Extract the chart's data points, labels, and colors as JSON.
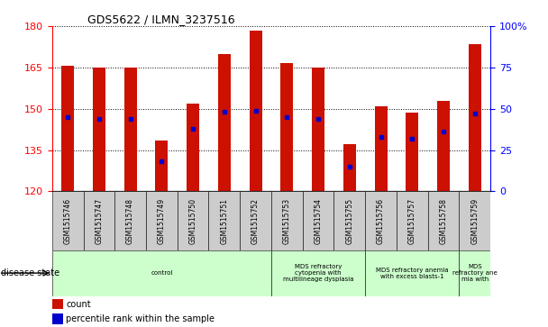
{
  "title": "GDS5622 / ILMN_3237516",
  "samples": [
    "GSM1515746",
    "GSM1515747",
    "GSM1515748",
    "GSM1515749",
    "GSM1515750",
    "GSM1515751",
    "GSM1515752",
    "GSM1515753",
    "GSM1515754",
    "GSM1515755",
    "GSM1515756",
    "GSM1515757",
    "GSM1515758",
    "GSM1515759"
  ],
  "counts": [
    165.5,
    165.0,
    165.0,
    138.5,
    152.0,
    170.0,
    178.5,
    166.5,
    165.0,
    137.0,
    151.0,
    148.5,
    153.0,
    173.5
  ],
  "percentile_ranks": [
    45,
    44,
    44,
    18,
    38,
    48,
    49,
    45,
    44,
    15,
    33,
    32,
    36,
    47
  ],
  "ymin": 120,
  "ymax": 180,
  "y_left_ticks": [
    120,
    135,
    150,
    165,
    180
  ],
  "y_right_ticks": [
    0,
    25,
    50,
    75,
    100
  ],
  "bar_color": "#cc1100",
  "dot_color": "#0000cc",
  "bar_width": 0.4,
  "disease_groups": [
    {
      "label": "control",
      "start": 0,
      "end": 7
    },
    {
      "label": "MDS refractory\ncytopenia with\nmultilineage dysplasia",
      "start": 7,
      "end": 10
    },
    {
      "label": "MDS refractory anemia\nwith excess blasts-1",
      "start": 10,
      "end": 13
    },
    {
      "label": "MDS\nrefractory ane\nmia with",
      "start": 13,
      "end": 14
    }
  ],
  "legend_count_label": "count",
  "legend_percentile_label": "percentile rank within the sample",
  "disease_state_label": "disease state",
  "group_bg_color": "#ccffcc",
  "sample_box_color": "#cccccc"
}
